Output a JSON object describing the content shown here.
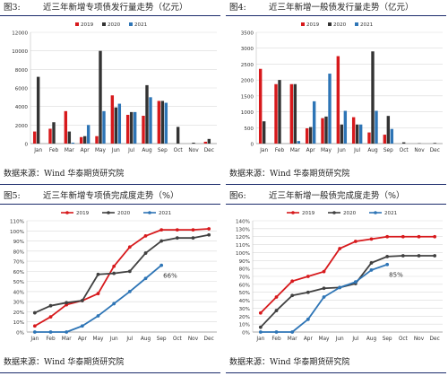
{
  "panels": [
    {
      "fig_label": "图3:",
      "title": "近三年新增专项债发行量走势（亿元）",
      "source": "数据来源：Wind  华泰期货研究院"
    },
    {
      "fig_label": "图4:",
      "title": "近三年新增一般债发行量走势（亿元）",
      "source": "数据来源：Wind  华泰期货研究院"
    },
    {
      "fig_label": "图5:",
      "title": "近三年新增专项债完成度走势（%）",
      "source": "数据来源：Wind  华泰期货研究院"
    },
    {
      "fig_label": "图6:",
      "title": "近三年新增一般债完成度走势（%）",
      "source": "数据来源：Wind  华泰期货研究院"
    }
  ],
  "chart_data": [
    {
      "type": "bar",
      "categories": [
        "Jan",
        "Feb",
        "Mar",
        "Apr",
        "May",
        "Jun",
        "Jul",
        "Aug",
        "Sep",
        "Oct",
        "Nov",
        "Dec"
      ],
      "series": [
        {
          "name": "2019",
          "color": "#d7191c",
          "values": [
            1300,
            1600,
            3500,
            700,
            800,
            5200,
            3100,
            3000,
            4600,
            0,
            0,
            200
          ]
        },
        {
          "name": "2020",
          "color": "#333333",
          "values": [
            7200,
            2300,
            1300,
            800,
            10000,
            3900,
            3400,
            6300,
            4600,
            1800,
            100,
            500
          ]
        },
        {
          "name": "2021",
          "color": "#2e75b6",
          "values": [
            0,
            0,
            100,
            2000,
            3500,
            4300,
            3400,
            5000,
            4400,
            null,
            null,
            null
          ]
        }
      ],
      "ylim": [
        0,
        12000
      ],
      "yticks": [
        0,
        2000,
        4000,
        6000,
        8000,
        10000,
        12000
      ],
      "grid": true,
      "legend": "top"
    },
    {
      "type": "bar",
      "categories": [
        "Jan",
        "Feb",
        "Mar",
        "Apr",
        "May",
        "Jun",
        "Jul",
        "Aug",
        "Sep",
        "Oct",
        "Nov",
        "Dec"
      ],
      "series": [
        {
          "name": "2019",
          "color": "#d7191c",
          "values": [
            2350,
            1870,
            1870,
            480,
            800,
            2750,
            830,
            350,
            280,
            0,
            0,
            0
          ]
        },
        {
          "name": "2020",
          "color": "#333333",
          "values": [
            700,
            2000,
            1870,
            520,
            850,
            600,
            600,
            2900,
            870,
            40,
            10,
            20
          ]
        },
        {
          "name": "2021",
          "color": "#2e75b6",
          "values": [
            0,
            0,
            80,
            1330,
            2200,
            1030,
            600,
            1030,
            460,
            null,
            null,
            null
          ]
        }
      ],
      "ylim": [
        0,
        3500
      ],
      "yticks": [
        0,
        500,
        1000,
        1500,
        2000,
        2500,
        3000,
        3500
      ],
      "grid": true,
      "legend": "top"
    },
    {
      "type": "line",
      "categories": [
        "Jan",
        "Feb",
        "Mar",
        "Apr",
        "May",
        "Jun",
        "Jul",
        "Aug",
        "Sep",
        "Oct",
        "Nov",
        "Dec"
      ],
      "series": [
        {
          "name": "2019",
          "color": "#d7191c",
          "values": [
            6,
            15,
            27,
            31,
            38,
            65,
            84,
            95,
            101,
            101,
            101,
            102
          ]
        },
        {
          "name": "2020",
          "color": "#404040",
          "values": [
            19,
            26,
            29,
            31,
            57,
            58,
            60,
            78,
            90,
            93,
            93,
            96
          ]
        },
        {
          "name": "2021",
          "color": "#2e75b6",
          "values": [
            0,
            0,
            0,
            6,
            16,
            28,
            40,
            53,
            66,
            null,
            null,
            null
          ]
        }
      ],
      "ylim": [
        0,
        110
      ],
      "yticks": [
        0,
        10,
        20,
        30,
        40,
        50,
        60,
        70,
        80,
        90,
        100,
        110
      ],
      "annotation": "66%",
      "grid": true,
      "legend": "top"
    },
    {
      "type": "line",
      "categories": [
        "Jan",
        "Feb",
        "Mar",
        "Apr",
        "May",
        "Jun",
        "Jul",
        "Aug",
        "Sep",
        "Oct",
        "Nov",
        "Dec"
      ],
      "series": [
        {
          "name": "2019",
          "color": "#d7191c",
          "values": [
            24,
            44,
            64,
            70,
            76,
            105,
            114,
            117,
            120,
            120,
            120,
            120
          ]
        },
        {
          "name": "2020",
          "color": "#404040",
          "values": [
            6,
            27,
            46,
            50,
            55,
            56,
            61,
            87,
            95,
            96,
            96,
            96
          ]
        },
        {
          "name": "2021",
          "color": "#2e75b6",
          "values": [
            0,
            0,
            0,
            16,
            44,
            56,
            63,
            78,
            85,
            null,
            null,
            null
          ]
        }
      ],
      "ylim": [
        0,
        140
      ],
      "yticks": [
        0,
        10,
        20,
        30,
        40,
        50,
        60,
        70,
        80,
        90,
        100,
        110,
        120,
        130,
        140
      ],
      "annotation": "85%",
      "grid": true,
      "legend": "top"
    }
  ]
}
